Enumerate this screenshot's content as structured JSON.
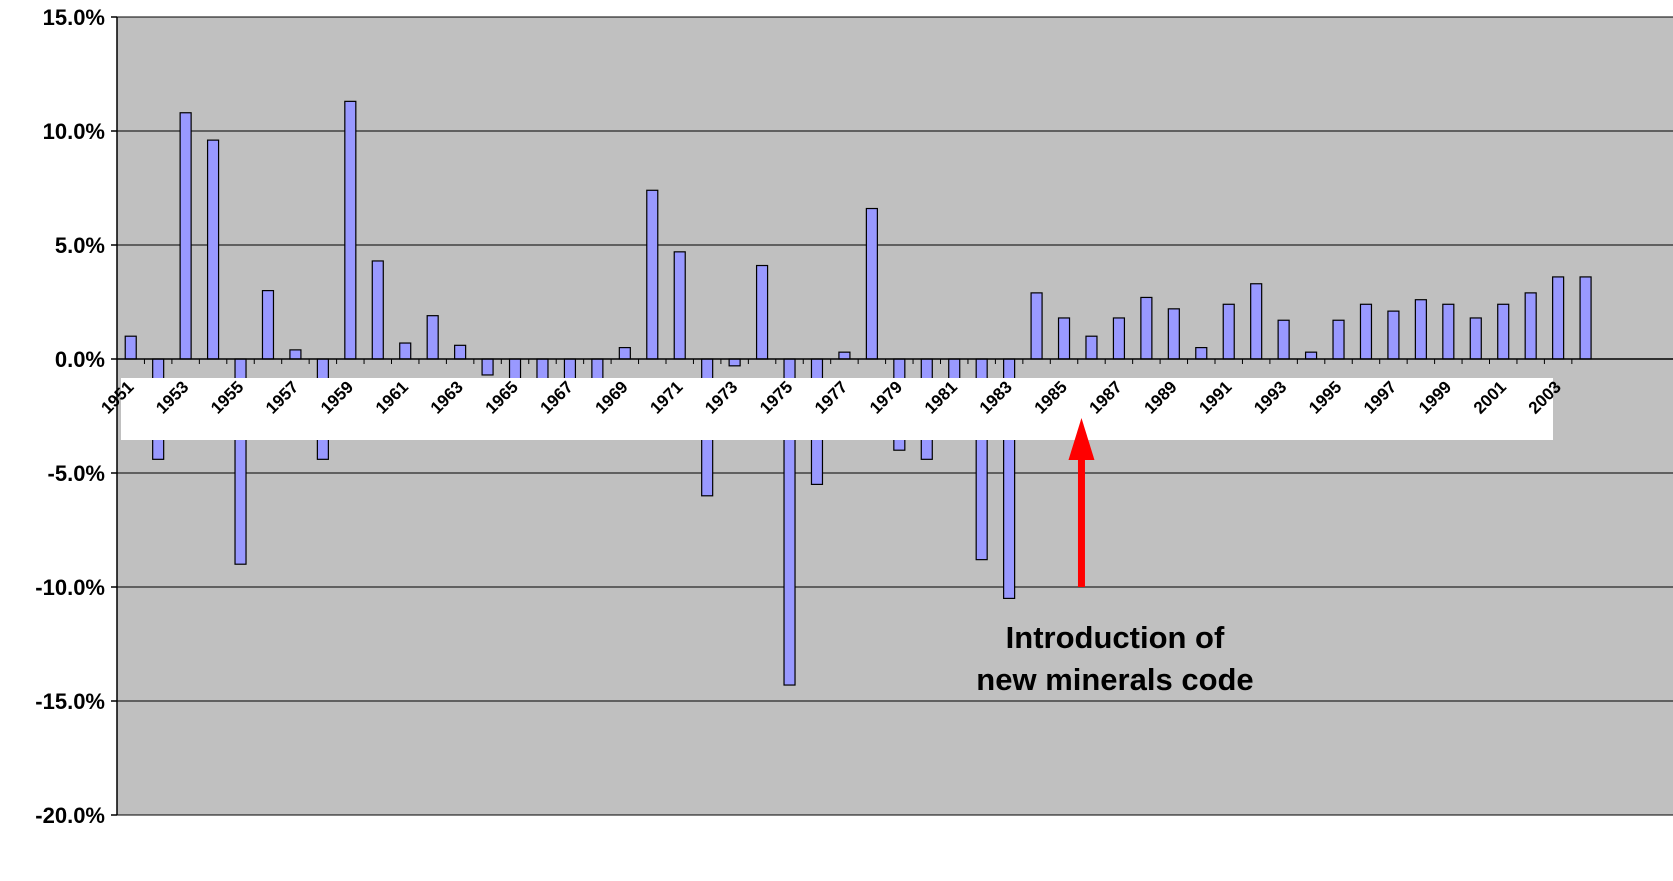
{
  "chart_data": {
    "type": "bar",
    "title": "",
    "xlabel": "",
    "ylabel": "",
    "ylim": [
      -0.2,
      0.15
    ],
    "y_tick_labels": [
      "15.0%",
      "10.0%",
      "5.0%",
      "0.0%",
      "-5.0%",
      "-10.0%",
      "-15.0%",
      "-20.0%"
    ],
    "y_tick_values": [
      0.15,
      0.1,
      0.05,
      0.0,
      -0.05,
      -0.1,
      -0.15,
      -0.2
    ],
    "x_tick_labels": [
      "1951",
      "1953",
      "1955",
      "1957",
      "1959",
      "1961",
      "1963",
      "1965",
      "1967",
      "1969",
      "1971",
      "1973",
      "1975",
      "1977",
      "1979",
      "1981",
      "1983",
      "1985",
      "1987",
      "1989",
      "1991",
      "1993",
      "1995",
      "1997",
      "1999",
      "2001",
      "2003"
    ],
    "categories": [
      "1951",
      "1952",
      "1953",
      "1954",
      "1955",
      "1956",
      "1957",
      "1958",
      "1959",
      "1960",
      "1961",
      "1962",
      "1963",
      "1964",
      "1965",
      "1966",
      "1967",
      "1968",
      "1969",
      "1970",
      "1971",
      "1972",
      "1973",
      "1974",
      "1975",
      "1976",
      "1977",
      "1978",
      "1979",
      "1980",
      "1981",
      "1982",
      "1983",
      "1984",
      "1985",
      "1986",
      "1987",
      "1988",
      "1989",
      "1990",
      "1991",
      "1992",
      "1993",
      "1994",
      "1995",
      "1996",
      "1997",
      "1998",
      "1999",
      "2000",
      "2001",
      "2002",
      "2003",
      "2004"
    ],
    "values": [
      0.01,
      -0.044,
      0.108,
      0.096,
      -0.09,
      0.03,
      0.004,
      -0.044,
      0.113,
      0.043,
      0.007,
      0.019,
      0.006,
      -0.007,
      -0.012,
      -0.012,
      -0.012,
      -0.012,
      0.005,
      0.074,
      0.047,
      -0.06,
      -0.003,
      0.041,
      -0.143,
      -0.055,
      0.003,
      0.066,
      -0.04,
      -0.044,
      -0.012,
      -0.088,
      -0.105,
      0.029,
      0.018,
      0.01,
      0.018,
      0.027,
      0.022,
      0.005,
      0.024,
      0.033,
      0.017,
      0.003,
      0.017,
      0.024,
      0.021,
      0.026,
      0.024,
      0.018,
      0.024,
      0.029,
      0.036,
      0.036
    ],
    "grid": true,
    "legend": "none",
    "colors": {
      "plot_background": "#c0c0c0",
      "bar_fill": "#9999ff",
      "bar_stroke": "#000000",
      "gridline": "#000000",
      "label_band": "#ffffff",
      "arrow": "#ff0000"
    },
    "annotation": {
      "lines": [
        "Introduction of",
        "new minerals code"
      ],
      "points_to_category": "1986",
      "arrow_from_value": -0.1
    }
  }
}
